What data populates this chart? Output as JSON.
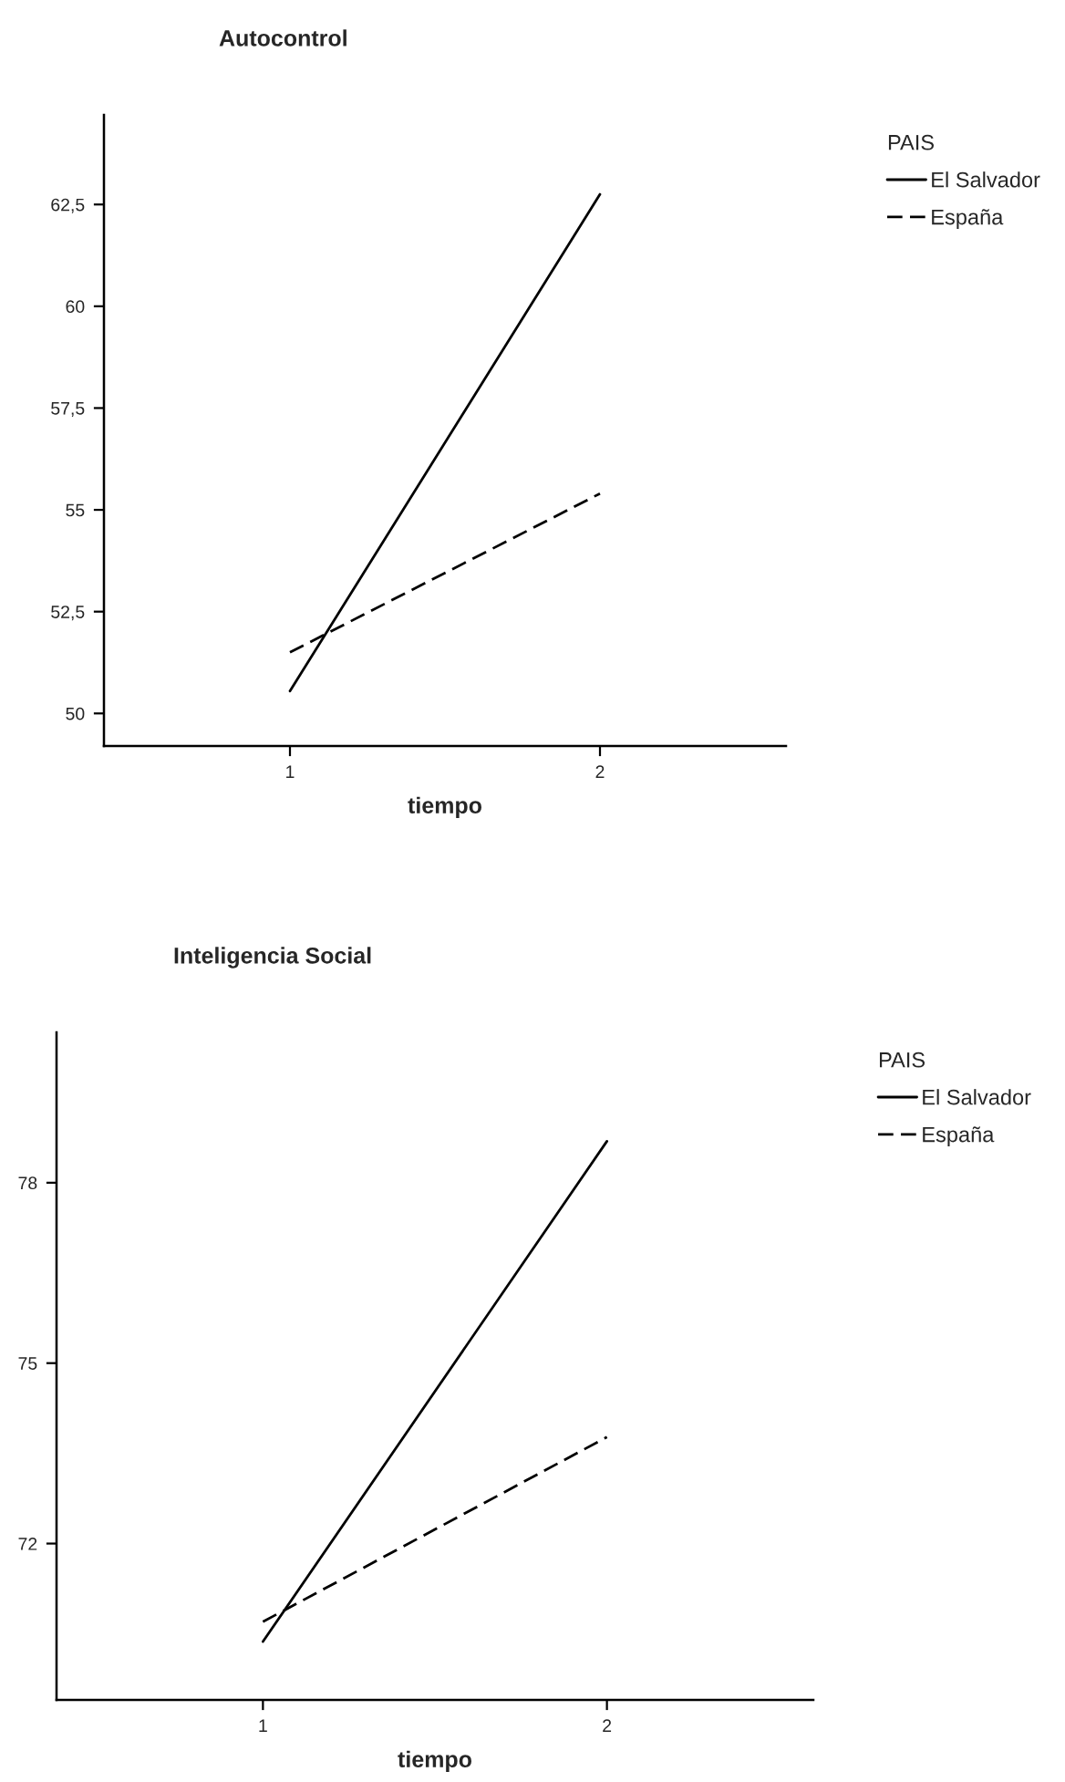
{
  "chart_data": [
    {
      "type": "line",
      "title": "Autocontrol",
      "xlabel": "tiempo",
      "legend_title": "PAIS",
      "legend": "top right",
      "categories": [
        "1",
        "2"
      ],
      "ylim": [
        49.2,
        64.7
      ],
      "yticks": [
        {
          "value": 50,
          "label": "50"
        },
        {
          "value": 52.5,
          "label": "52,5"
        },
        {
          "value": 55,
          "label": "55"
        },
        {
          "value": 57.5,
          "label": "57,5"
        },
        {
          "value": 60,
          "label": "60"
        },
        {
          "value": 62.5,
          "label": "62,5"
        }
      ],
      "grid": false,
      "series": [
        {
          "name": "El Salvador",
          "color": "#000000",
          "line_style": "solid",
          "values": [
            50.55,
            62.75
          ]
        },
        {
          "name": "España",
          "color": "#000000",
          "line_style": "dashed",
          "values": [
            51.5,
            55.4
          ]
        }
      ]
    },
    {
      "type": "line",
      "title": "Inteligencia Social",
      "xlabel": "tiempo",
      "legend_title": "PAIS",
      "legend": "top right",
      "categories": [
        "1",
        "2"
      ],
      "ylim": [
        69.4,
        80.5
      ],
      "yticks": [
        72,
        75,
        78
      ],
      "grid": false,
      "series": [
        {
          "name": "El Salvador",
          "color": "#000000",
          "line_style": "solid",
          "values": [
            70.37,
            78.69
          ]
        },
        {
          "name": "España",
          "color": "#000000",
          "line_style": "dashed",
          "values": [
            70.7,
            73.77
          ]
        }
      ]
    }
  ]
}
